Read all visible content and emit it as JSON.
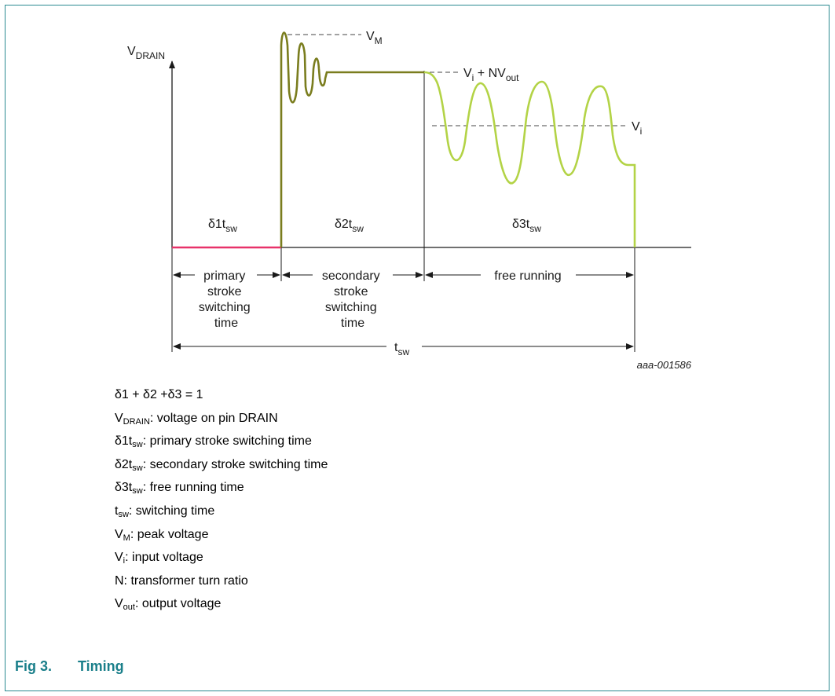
{
  "diagram": {
    "labels": {
      "vdrain_main": "V",
      "vdrain_sub": "DRAIN",
      "vm_main": "V",
      "vm_sub": "M",
      "vi_nvout_a": "V",
      "vi_nvout_b": "i",
      "vi_nvout_c": " + NV",
      "vi_nvout_d": "out",
      "vi_main": "V",
      "vi_sub": "i",
      "d1_main": "δ1t",
      "d1_sub": "sw",
      "d2_main": "δ2t",
      "d2_sub": "sw",
      "d3_main": "δ3t",
      "d3_sub": "sw",
      "tsw_main": "t",
      "tsw_sub": "sw",
      "primary": [
        "primary",
        "stroke",
        "switching",
        "time"
      ],
      "secondary": [
        "secondary",
        "stroke",
        "switching",
        "time"
      ],
      "free_running": "free running",
      "figure_code": "aaa-001586"
    },
    "colors": {
      "primary_stroke": "#e8336a",
      "secondary_stroke": "#7a7d1e",
      "free_running": "#b3d346",
      "axis": "#1a1a1a",
      "dashed": "#444444",
      "frame": "#2b8a90",
      "caption": "#1a7f8a"
    }
  },
  "legend": [
    {
      "main": "δ1 + δ2 +δ3 = 1",
      "sub": "",
      "rest": ""
    },
    {
      "main": "V",
      "sub": "DRAIN",
      "rest": ": voltage on pin DRAIN"
    },
    {
      "main": "δ1t",
      "sub": "sw",
      "rest": ": primary stroke switching time"
    },
    {
      "main": "δ2t",
      "sub": "sw",
      "rest": ": secondary stroke switching time"
    },
    {
      "main": "δ3t",
      "sub": "sw",
      "rest": ": free running time"
    },
    {
      "main": "t",
      "sub": "sw",
      "rest": ": switching time"
    },
    {
      "main": "V",
      "sub": "M",
      "rest": ": peak voltage"
    },
    {
      "main": "V",
      "sub": "i",
      "rest": ": input voltage"
    },
    {
      "main": "N: transformer turn ratio",
      "sub": "",
      "rest": ""
    },
    {
      "main": "V",
      "sub": "out",
      "rest": ": output voltage"
    }
  ],
  "caption": {
    "number": "Fig 3.",
    "title": "Timing"
  }
}
